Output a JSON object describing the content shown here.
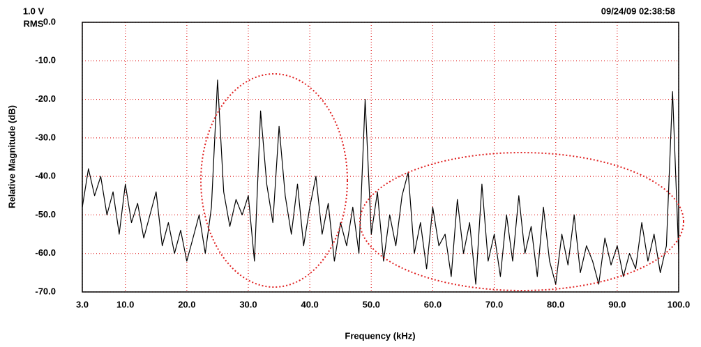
{
  "chart_data": {
    "type": "line",
    "title_left": "1.0 V",
    "title_left_sub": "RMS",
    "timestamp": "09/24/09 02:38:58",
    "x_label": "Frequency (kHz)",
    "y_label": "Relative Magnitude (dB)",
    "xlim": [
      3,
      100
    ],
    "ylim": [
      -70,
      0
    ],
    "xticks": [
      {
        "value": 3,
        "label": "3.0"
      },
      {
        "value": 10,
        "label": "10.0"
      },
      {
        "value": 20,
        "label": "20.0"
      },
      {
        "value": 30,
        "label": "30.0"
      },
      {
        "value": 40,
        "label": "40.0"
      },
      {
        "value": 50,
        "label": "50.0"
      },
      {
        "value": 60,
        "label": "60.0"
      },
      {
        "value": 70,
        "label": "70.0"
      },
      {
        "value": 80,
        "label": "80.0"
      },
      {
        "value": 90,
        "label": "90.0"
      },
      {
        "value": 100,
        "label": "100.0"
      }
    ],
    "yticks": [
      {
        "value": 0,
        "label": "0.0"
      },
      {
        "value": -10,
        "label": "-10.0"
      },
      {
        "value": -20,
        "label": "-20.0"
      },
      {
        "value": -30,
        "label": "-30.0"
      },
      {
        "value": -40,
        "label": "-40.0"
      },
      {
        "value": -50,
        "label": "-50.0"
      },
      {
        "value": -60,
        "label": "-60.0"
      },
      {
        "value": -70,
        "label": "-70.0"
      }
    ],
    "grid": true,
    "grid_color": "#e02020",
    "x": [
      3,
      4,
      5,
      6,
      7,
      8,
      9,
      10,
      11,
      12,
      13,
      14,
      15,
      16,
      17,
      18,
      19,
      20,
      21,
      22,
      23,
      24,
      25,
      26,
      27,
      28,
      29,
      30,
      31,
      32,
      33,
      34,
      35,
      36,
      37,
      38,
      39,
      40,
      41,
      42,
      43,
      44,
      45,
      46,
      47,
      48,
      49,
      50,
      51,
      52,
      53,
      54,
      55,
      56,
      57,
      58,
      59,
      60,
      61,
      62,
      63,
      64,
      65,
      66,
      67,
      68,
      69,
      70,
      71,
      72,
      73,
      74,
      75,
      76,
      77,
      78,
      79,
      80,
      81,
      82,
      83,
      84,
      85,
      86,
      87,
      88,
      89,
      90,
      91,
      92,
      93,
      94,
      95,
      96,
      97,
      98,
      99,
      100
    ],
    "series": [
      {
        "color": "#000000",
        "values": [
          -48,
          -38,
          -45,
          -40,
          -50,
          -44,
          -55,
          -42,
          -52,
          -47,
          -56,
          -50,
          -44,
          -58,
          -52,
          -60,
          -54,
          -62,
          -56,
          -50,
          -60,
          -48,
          -15,
          -44,
          -53,
          -46,
          -50,
          -45,
          -62,
          -23,
          -42,
          -52,
          -27,
          -45,
          -55,
          -42,
          -58,
          -48,
          -40,
          -55,
          -47,
          -62,
          -52,
          -58,
          -48,
          -60,
          -20,
          -55,
          -44,
          -62,
          -50,
          -58,
          -45,
          -39,
          -60,
          -52,
          -64,
          -48,
          -58,
          -55,
          -66,
          -46,
          -60,
          -52,
          -68,
          -42,
          -62,
          -55,
          -66,
          -50,
          -62,
          -45,
          -60,
          -53,
          -66,
          -48,
          -62,
          -68,
          -55,
          -63,
          -50,
          -65,
          -58,
          -62,
          -68,
          -56,
          -63,
          -58,
          -66,
          -60,
          -64,
          -52,
          -62,
          -55,
          -65,
          -58,
          -18,
          -60
        ]
      }
    ]
  }
}
